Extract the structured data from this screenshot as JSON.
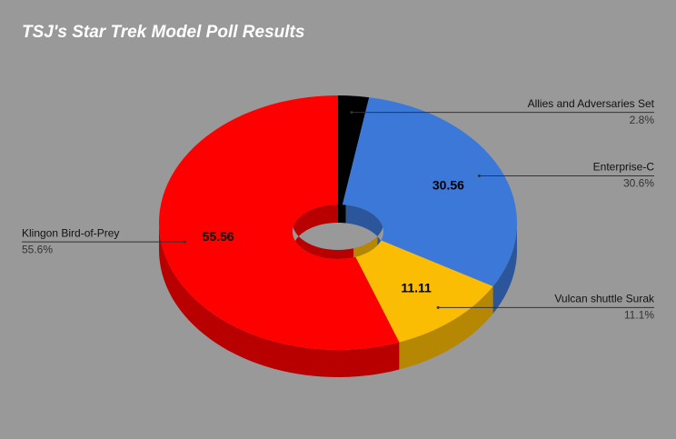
{
  "chart_data": {
    "type": "donut3d",
    "title": "TSJ's Star Trek Model Poll Results",
    "categories": [
      "Allies and Adversaries Set",
      "Enterprise-C",
      "Vulcan shuttle Surak",
      "Klingon Bird-of-Prey"
    ],
    "values": [
      2.78,
      30.56,
      11.11,
      55.56
    ],
    "value_labels": [
      null,
      "30.56",
      "11.11",
      "55.56"
    ],
    "percent_labels": [
      "2.8%",
      "30.6%",
      "11.1%",
      "55.6%"
    ],
    "colors": [
      "#000000",
      "#3c78d8",
      "#fbbc04",
      "#ff0000"
    ]
  }
}
